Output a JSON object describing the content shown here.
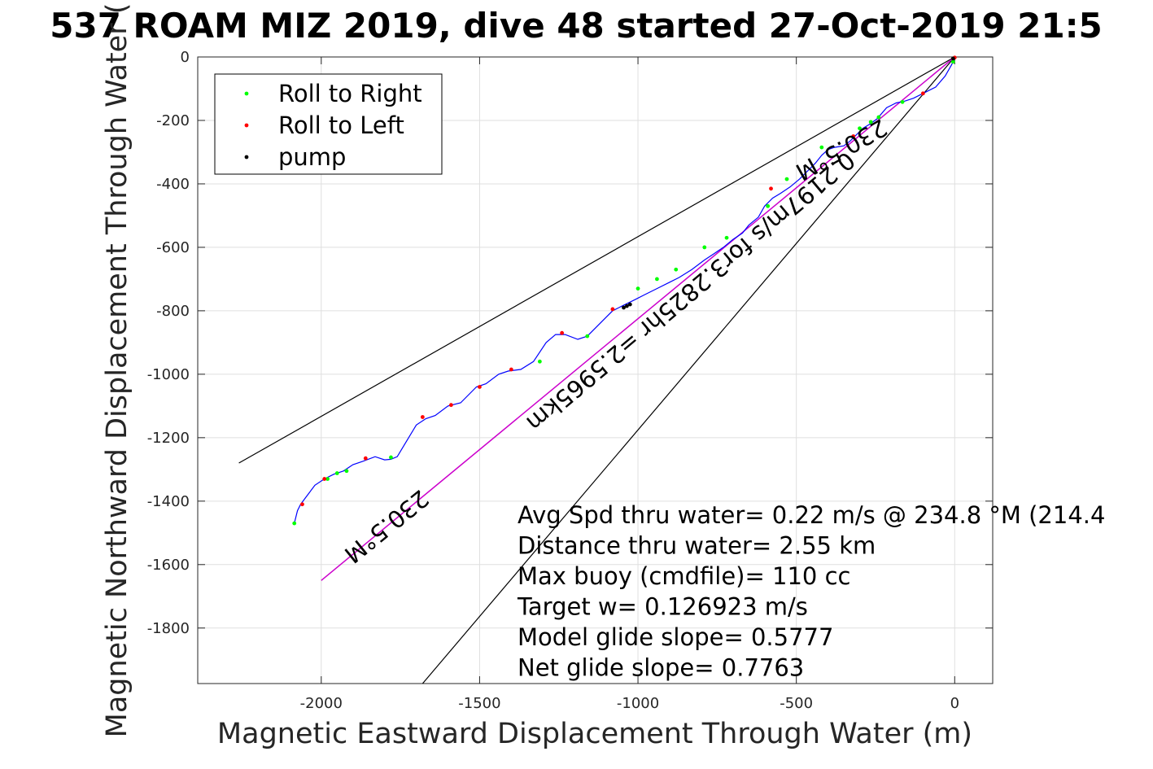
{
  "chart_data": {
    "type": "line",
    "title": "537 ROAM MIZ 2019, dive 48 started 27-Oct-2019 21:5",
    "xlabel": "Magnetic Eastward Displacement Through Water (m)",
    "ylabel": "Magnetic Northward Displacement Through Water (",
    "xlim": [
      -2390,
      120
    ],
    "ylim": [
      -1975,
      0
    ],
    "xticks": [
      -2000,
      -1500,
      -1000,
      -500,
      0
    ],
    "xtick_labels": [
      "-2000",
      "-1500",
      "-1000",
      "-500",
      "0"
    ],
    "yticks": [
      0,
      -200,
      -400,
      -600,
      -800,
      -1000,
      -1200,
      -1400,
      -1600,
      -1800
    ],
    "ytick_labels": [
      "0",
      "-200",
      "-400",
      "-600",
      "-800",
      "-1000",
      "-1200",
      "-1400",
      "-1600",
      "-1800"
    ],
    "grid": true,
    "legend_position": "top-left",
    "legend": [
      {
        "label": "Roll to Right",
        "color": "#00ff00"
      },
      {
        "label": "Roll to Left",
        "color": "#ff0000"
      },
      {
        "label": "pump",
        "color": "#000000"
      }
    ],
    "track": {
      "color": "#0000ff",
      "x": [
        0,
        -10,
        -30,
        -60,
        -100,
        -130,
        -160,
        -185,
        -215,
        -245,
        -265,
        -290,
        -310,
        -330,
        -350,
        -380,
        -400,
        -420,
        -440,
        -460,
        -490,
        -520,
        -550,
        -575,
        -600,
        -620,
        -650,
        -670,
        -700,
        -730,
        -760,
        -790,
        -830,
        -870,
        -900,
        -940,
        -980,
        -1010,
        -1040,
        -1060,
        -1080,
        -1100,
        -1130,
        -1160,
        -1190,
        -1230,
        -1260,
        -1290,
        -1330,
        -1370,
        -1410,
        -1440,
        -1480,
        -1510,
        -1560,
        -1600,
        -1640,
        -1670,
        -1700,
        -1730,
        -1760,
        -1780,
        -1800,
        -1830,
        -1870,
        -1900,
        -1930,
        -1960,
        -1990,
        -2020,
        -2050,
        -2065,
        -2075,
        -2085
      ],
      "y": [
        -5,
        -25,
        -60,
        -95,
        -115,
        -130,
        -140,
        -145,
        -160,
        -195,
        -210,
        -225,
        -245,
        -265,
        -280,
        -285,
        -292,
        -310,
        -335,
        -355,
        -385,
        -410,
        -430,
        -445,
        -470,
        -505,
        -530,
        -555,
        -575,
        -600,
        -620,
        -640,
        -670,
        -695,
        -710,
        -730,
        -750,
        -765,
        -780,
        -790,
        -800,
        -820,
        -850,
        -880,
        -890,
        -875,
        -875,
        -900,
        -960,
        -985,
        -990,
        -1000,
        -1030,
        -1040,
        -1090,
        -1100,
        -1130,
        -1140,
        -1160,
        -1210,
        -1260,
        -1268,
        -1270,
        -1260,
        -1275,
        -1285,
        -1305,
        -1315,
        -1330,
        -1350,
        -1390,
        -1410,
        -1430,
        -1470
      ]
    },
    "roll_right": {
      "x": [
        -5,
        -165,
        -240,
        -265,
        -300,
        -420,
        -530,
        -590,
        -720,
        -790,
        -880,
        -940,
        -1000,
        -1160,
        -1310,
        -1780,
        -1920,
        -1950,
        -1980,
        -2085
      ],
      "y": [
        -15,
        -142,
        -190,
        -205,
        -225,
        -285,
        -385,
        -470,
        -570,
        -600,
        -670,
        -700,
        -730,
        -880,
        -960,
        -1262,
        -1305,
        -1312,
        -1330,
        -1470
      ]
    },
    "roll_left": {
      "x": [
        0,
        -100,
        -320,
        -580,
        -1080,
        -1240,
        -1400,
        -1500,
        -1590,
        -1680,
        -1860,
        -1990,
        -2060
      ],
      "y": [
        -2,
        -115,
        -250,
        -415,
        -795,
        -870,
        -985,
        -1040,
        -1097,
        -1135,
        -1265,
        -1330,
        -1410
      ]
    },
    "pump": {
      "x": [
        -5,
        -1045,
        -1035,
        -1025
      ],
      "y": [
        -5,
        -790,
        -785,
        -780
      ]
    },
    "heading_line": {
      "color": "#cc00cc",
      "x": [
        0,
        -2000
      ],
      "y": [
        0,
        -1650
      ]
    },
    "envelope_lines": {
      "color": "#000000",
      "upper": {
        "x": [
          0,
          -2260
        ],
        "y": [
          0,
          -1280
        ]
      },
      "lower": {
        "x": [
          0,
          -1680
        ],
        "y": [
          0,
          -1975
        ]
      }
    },
    "rotated_labels": [
      {
        "text": "230.5°M",
        "x": -370,
        "y": -270,
        "angle": 151
      },
      {
        "text": "0.2197m/s for3.2825hr =2.5965km",
        "x": -850,
        "y": -720,
        "angle": 140
      },
      {
        "text": "230.5°M",
        "x": -1810,
        "y": -1460,
        "angle": 141
      }
    ],
    "annotations": [
      "Avg Spd thru water=  0.22 m/s @ 234.8 °M (214.4",
      "Distance thru water=  2.55 km",
      "Max buoy (cmdfile)= 110 cc",
      "Target w= 0.126923 m/s",
      "Model glide slope= 0.5777",
      "Net glide slope= 0.7763"
    ]
  }
}
